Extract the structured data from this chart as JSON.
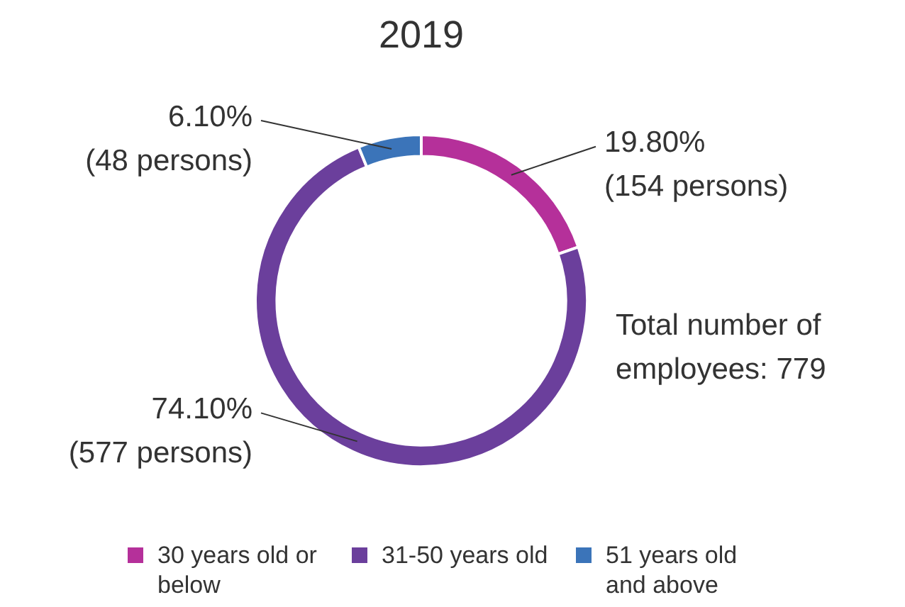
{
  "chart_data": {
    "type": "donut",
    "title": "2019",
    "categories": [
      "30 years old or below",
      "31-50 years old",
      "51 years old and above"
    ],
    "values": [
      154,
      577,
      48
    ],
    "colors": [
      "#b5309a",
      "#6b3f9c",
      "#3b74b9"
    ],
    "value_labels": [
      "19.80% (154 persons)",
      "74.10% (577 persons)",
      "6.10% (48 persons)"
    ],
    "annotations": [
      "Total number of employees: 779"
    ],
    "legend": "bottom"
  }
}
